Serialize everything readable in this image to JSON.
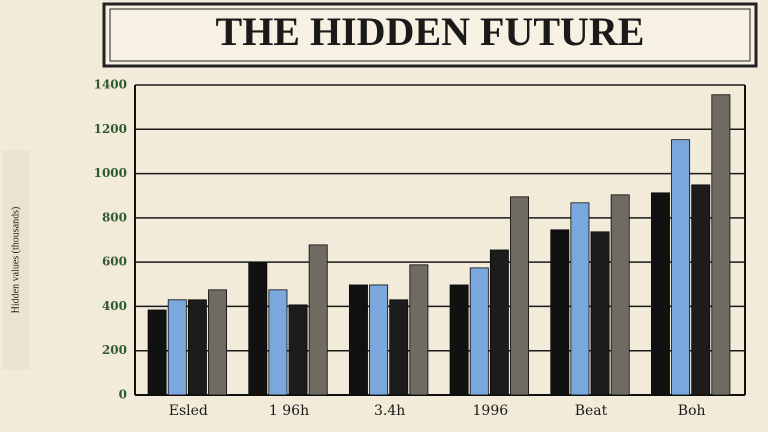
{
  "chart_data": {
    "type": "bar",
    "title": "THE HIDDEN FUTURE",
    "y_label": "Hidden values (thousands)",
    "categories": [
      "Esled",
      "1 96h",
      "3.4h",
      "1996",
      "Beat",
      "Boh"
    ],
    "series": [
      {
        "color": "#111111",
        "values": [
          384,
          597,
          497,
          497,
          746,
          913
        ]
      },
      {
        "color": "#7aa7dc",
        "values": [
          430,
          475,
          497,
          574,
          868,
          1153
        ]
      },
      {
        "color": "#1c1c1c",
        "values": [
          430,
          407,
          430,
          655,
          737,
          949
        ]
      },
      {
        "color": "#6f6a62",
        "values": [
          475,
          678,
          588,
          895,
          904,
          1356
        ]
      }
    ],
    "ylim": [
      0,
      1400
    ],
    "yticks": [
      0,
      200,
      400,
      600,
      800,
      1000,
      1200,
      1400
    ],
    "grid": true
  }
}
